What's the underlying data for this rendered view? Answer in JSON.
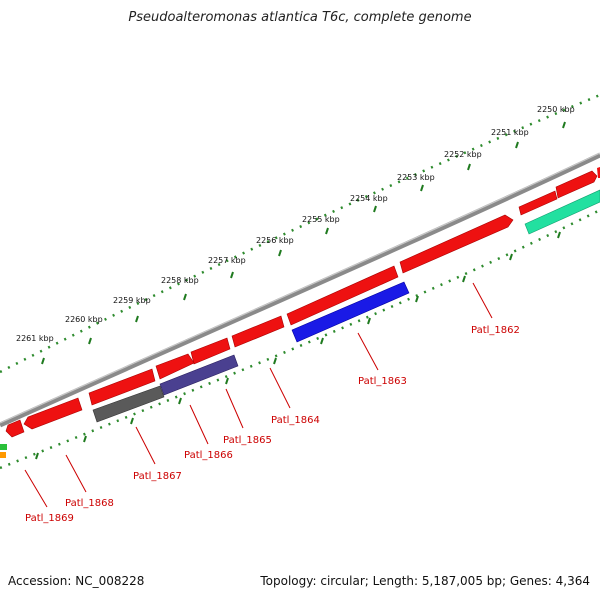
{
  "title": "Pseudoalteromonas atlantica T6c, complete genome",
  "footer": {
    "accession": "Accession: NC_008228",
    "summary": "Topology: circular; Length: 5,187,005 bp; Genes: 4,364"
  },
  "colors": {
    "backbone": "#8a8a8a",
    "tick_dotted": "#2e8b2e",
    "tick_major": "#1f7a1f",
    "label": "#cc0000",
    "cds": "#ee1111",
    "cds_blue": "#1a1ae6",
    "cds_indigo": "#4a4090",
    "cds_gray": "#5a5a5a",
    "cds_teal": "#22e0a0",
    "edge_orange": "#ff9900"
  },
  "scale_labels": [
    "2250 kbp",
    "2251 kbp",
    "2252 kbp",
    "2253 kbp",
    "2254 kbp",
    "2255 kbp",
    "2256 kbp",
    "2257 kbp",
    "2258 kbp",
    "2259 kbp",
    "2260 kbp",
    "2261 kbp"
  ],
  "gene_labels": [
    "Patl_1862",
    "Patl_1863",
    "Patl_1864",
    "Patl_1865",
    "Patl_1866",
    "Patl_1867",
    "Patl_1868",
    "Patl_1869"
  ]
}
